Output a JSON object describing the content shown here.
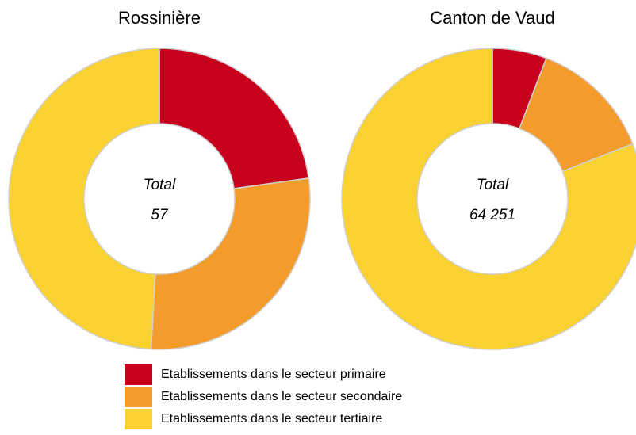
{
  "chart_data": [
    {
      "type": "pie",
      "title": "Rossinière",
      "values": [
        13,
        16,
        28
      ],
      "hole": 0.5,
      "center_label": "Total",
      "total": 57
    },
    {
      "type": "pie",
      "title": "Canton de Vaud",
      "values": [
        3740,
        8495,
        52016
      ],
      "hole": 0.5,
      "center_label": "Total",
      "total": {
        "value": 64251,
        "label": "64 251"
      }
    }
  ],
  "legend": {
    "entries": [
      "Etablissements dans le secteur primaire",
      "Etablissements dans le secteur secondaire",
      "Etablissements dans le secteur tertiaire"
    ],
    "colors": [
      "#c8001e",
      "#f39c2c",
      "#f9d131"
    ]
  }
}
